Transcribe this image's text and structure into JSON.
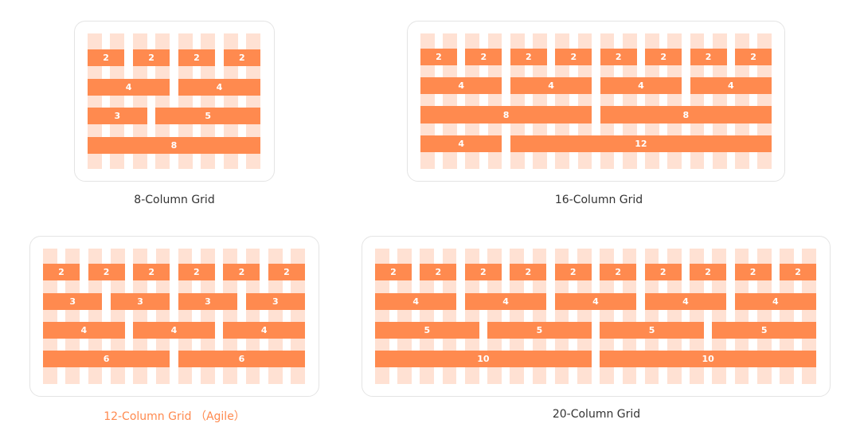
{
  "colors": {
    "stripe": "#ffe1d3",
    "block": "#ff8a4f",
    "block_text": "#ffffff",
    "caption": "#333333",
    "caption_accent": "#ff8a4f",
    "card_border": "#e4e4e4"
  },
  "grids": [
    {
      "id": "grid-8",
      "caption": "8-Column Grid",
      "caption_highlight": false,
      "columns": 8,
      "rows": [
        [
          2,
          2,
          2,
          2
        ],
        [
          4,
          4
        ],
        [
          3,
          5
        ],
        [
          8
        ]
      ]
    },
    {
      "id": "grid-16",
      "caption": "16-Column Grid",
      "caption_highlight": false,
      "columns": 16,
      "rows": [
        [
          2,
          2,
          2,
          2,
          2,
          2,
          2,
          2
        ],
        [
          4,
          4,
          4,
          4
        ],
        [
          8,
          8
        ],
        [
          4,
          12
        ]
      ]
    },
    {
      "id": "grid-12",
      "caption": "12-Column Grid （Agile）",
      "caption_highlight": true,
      "columns": 12,
      "rows": [
        [
          2,
          2,
          2,
          2,
          2,
          2
        ],
        [
          3,
          3,
          3,
          3
        ],
        [
          4,
          4,
          4
        ],
        [
          6,
          6
        ]
      ]
    },
    {
      "id": "grid-20",
      "caption": "20-Column Grid",
      "caption_highlight": false,
      "columns": 20,
      "rows": [
        [
          2,
          2,
          2,
          2,
          2,
          2,
          2,
          2,
          2,
          2
        ],
        [
          4,
          4,
          4,
          4,
          4
        ],
        [
          5,
          5,
          5,
          5
        ],
        [
          10,
          10
        ]
      ]
    }
  ]
}
